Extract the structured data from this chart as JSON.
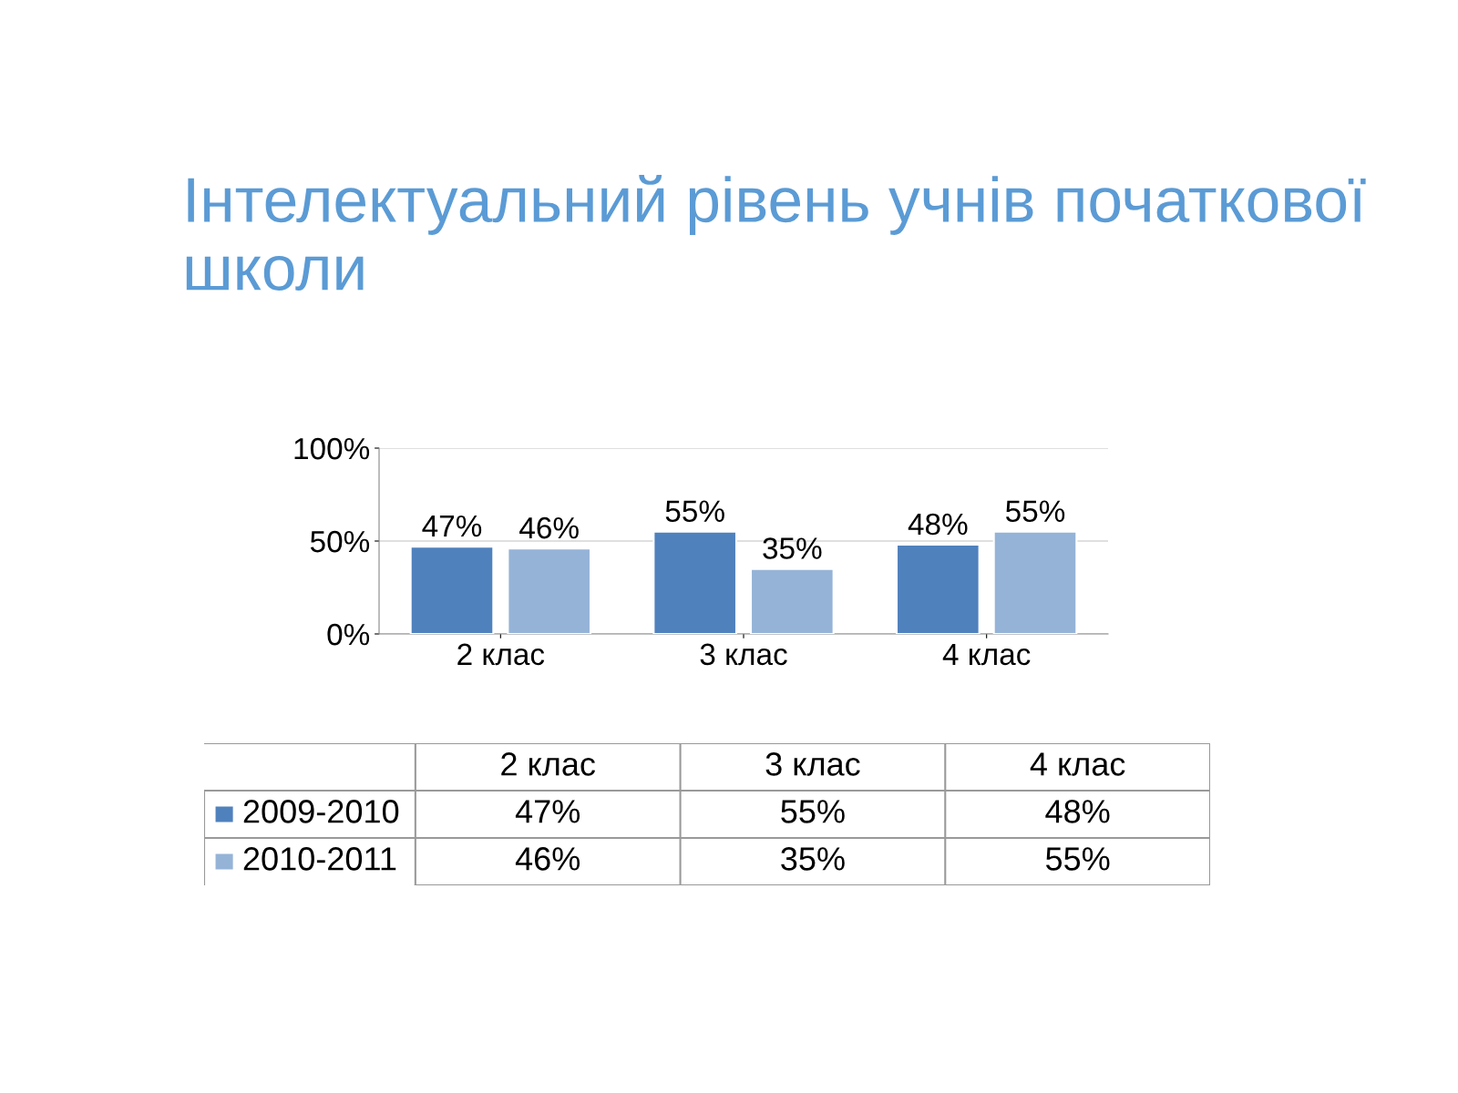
{
  "chart_data": {
    "type": "bar",
    "title": "Інтелектуальний рівень учнів початкової школи",
    "categories": [
      "2 клас",
      "3 клас",
      "4 клас"
    ],
    "series": [
      {
        "name": "2009-2010",
        "color": "#4f81bd",
        "values": [
          47,
          55,
          48
        ],
        "value_labels": [
          "47%",
          "55%",
          "48%"
        ]
      },
      {
        "name": "2010-2011",
        "color": "#95b3d7",
        "values": [
          46,
          35,
          55
        ],
        "value_labels": [
          "46%",
          "35%",
          "55%"
        ]
      }
    ],
    "ylim": [
      0,
      100
    ],
    "yticks": [
      {
        "value": 0,
        "label": "0%"
      },
      {
        "value": 50,
        "label": "50%"
      },
      {
        "value": 100,
        "label": "100%"
      }
    ],
    "grid": "y",
    "legend": "bottom"
  }
}
